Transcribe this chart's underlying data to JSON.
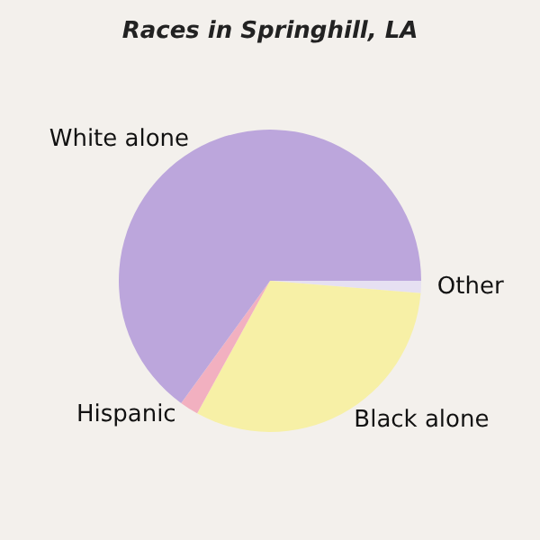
{
  "chart_data": {
    "type": "pie",
    "title": "Races in Springhill, LA",
    "categories": [
      "Other",
      "Black alone",
      "Hispanic",
      "White alone"
    ],
    "values": [
      1.3,
      31.7,
      2,
      65
    ],
    "colors": [
      "#e6e0f2",
      "#f7f0a6",
      "#f2b0c0",
      "#bca6dc"
    ],
    "legend": false
  }
}
